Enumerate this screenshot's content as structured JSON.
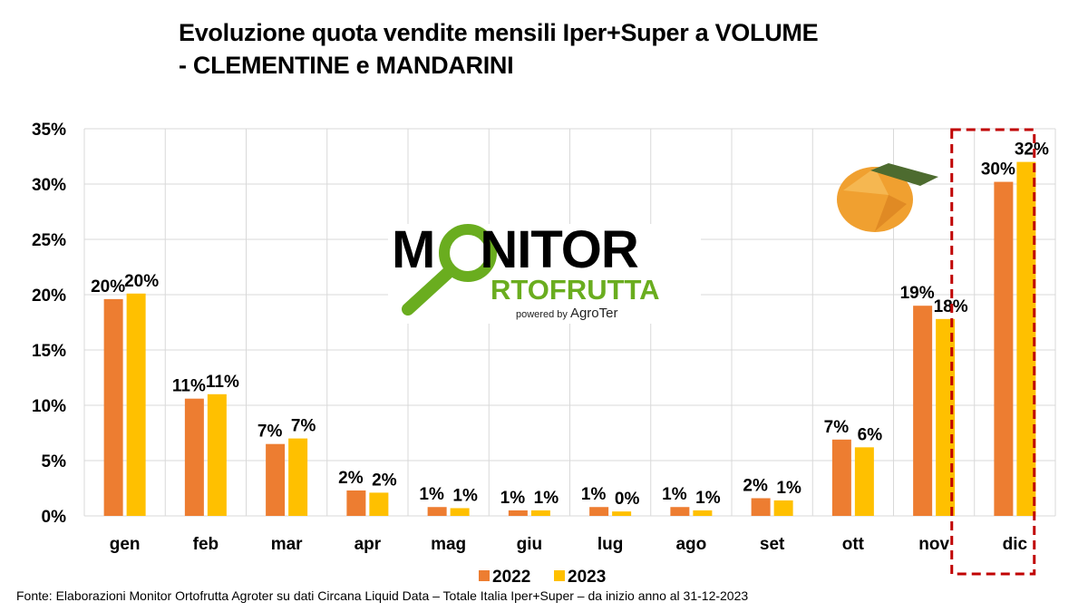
{
  "chart_data": {
    "type": "bar",
    "title_line1": "Evoluzione quota vendite mensili Iper+Super a VOLUME",
    "title_line2": "- CLEMENTINE e MANDARINI",
    "categories": [
      "gen",
      "feb",
      "mar",
      "apr",
      "mag",
      "giu",
      "lug",
      "ago",
      "set",
      "ott",
      "nov",
      "dic"
    ],
    "series": [
      {
        "name": "2022",
        "color": "#ed7d31",
        "values": [
          19.6,
          10.6,
          6.5,
          2.3,
          0.8,
          0.5,
          0.8,
          0.8,
          1.6,
          6.9,
          19.0,
          30.2
        ],
        "labels": [
          "20%",
          "11%",
          "7%",
          "2%",
          "1%",
          "1%",
          "1%",
          "1%",
          "2%",
          "7%",
          "19%",
          "30%"
        ]
      },
      {
        "name": "2023",
        "color": "#ffc000",
        "values": [
          20.1,
          11.0,
          7.0,
          2.1,
          0.7,
          0.5,
          0.4,
          0.5,
          1.4,
          6.2,
          17.8,
          32.0
        ],
        "labels": [
          "20%",
          "11%",
          "7%",
          "2%",
          "1%",
          "1%",
          "0%",
          "1%",
          "1%",
          "6%",
          "18%",
          "32%"
        ]
      }
    ],
    "y_ticks": [
      "0%",
      "5%",
      "10%",
      "15%",
      "20%",
      "25%",
      "30%",
      "35%"
    ],
    "ylim": [
      0,
      35
    ],
    "grid": true,
    "legend_position": "bottom",
    "highlight_category": "dic",
    "highlight_color": "#c00000"
  },
  "logo": {
    "line1": "MONITOR",
    "line2": "RTOFRUTTA",
    "powered": "powered by",
    "brand": "AgroTer"
  },
  "source": "Fonte: Elaborazioni Monitor Ortofrutta Agroter su dati Circana Liquid Data – Totale Italia Iper+Super –  da inizio anno al 31-12-2023"
}
